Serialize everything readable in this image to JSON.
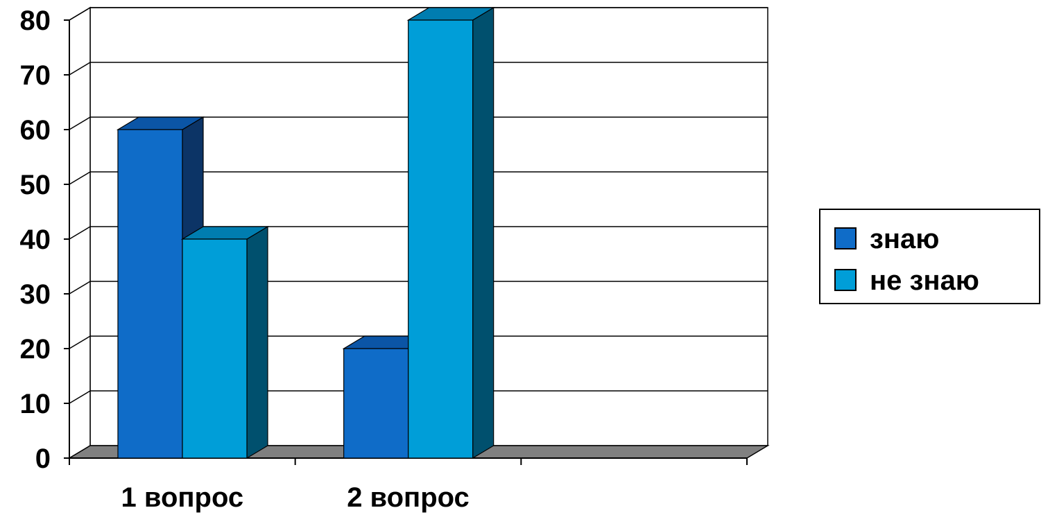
{
  "chart_data": {
    "type": "bar",
    "title": "",
    "xlabel": "",
    "ylabel": "",
    "categories": [
      "1 вопрос",
      "2 вопрос",
      ""
    ],
    "series": [
      {
        "name": "знаю",
        "values": [
          60,
          20,
          null
        ],
        "color": "#0F6CC8",
        "side_color": "#0C3466",
        "top_color": "#0B55A6"
      },
      {
        "name": "не знаю",
        "values": [
          40,
          80,
          null
        ],
        "color": "#009ED8",
        "side_color": "#00506E",
        "top_color": "#007DB0"
      }
    ],
    "ylim": [
      0,
      80
    ],
    "yticks": [
      0,
      10,
      20,
      30,
      40,
      50,
      60,
      70,
      80
    ],
    "grid": true,
    "legend_position": "right",
    "floor_color": "#808080",
    "axis_color": "#000000"
  }
}
